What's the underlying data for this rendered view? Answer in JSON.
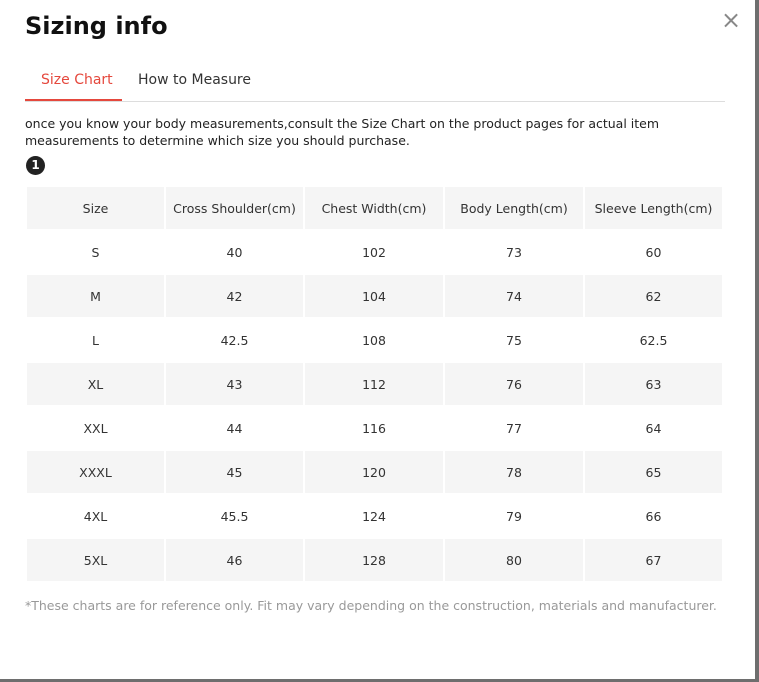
{
  "header": {
    "title": "Sizing info",
    "close": "×"
  },
  "tabs": [
    "Size Chart",
    "How to Measure"
  ],
  "description": "once you know your body measurements,consult the Size Chart on the product pages for actual item measurements to determine which size you should purchase.",
  "badge": "1",
  "table": {
    "columns": [
      "Size",
      "Cross Shoulder(cm)",
      "Chest Width(cm)",
      "Body Length(cm)",
      "Sleeve Length(cm)"
    ],
    "rows": [
      [
        "S",
        40,
        102,
        73,
        60
      ],
      [
        "M",
        42,
        104,
        74,
        62
      ],
      [
        "L",
        42.5,
        108,
        75,
        62.5
      ],
      [
        "XL",
        43,
        112,
        76,
        63
      ],
      [
        "XXL",
        44,
        116,
        77,
        64
      ],
      [
        "XXXL",
        45,
        120,
        78,
        65
      ],
      [
        "4XL",
        45.5,
        124,
        79,
        66
      ],
      [
        "5XL",
        46,
        128,
        80,
        67
      ]
    ]
  },
  "footnote": "*These charts are for reference only. Fit may vary depending on the construction, materials and manufacturer."
}
